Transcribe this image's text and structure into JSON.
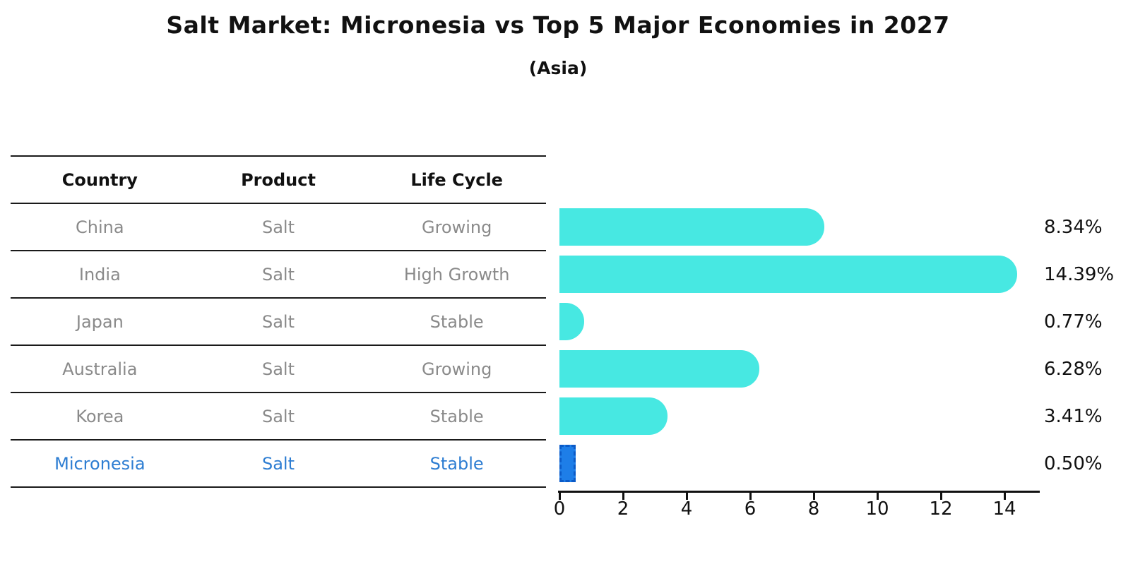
{
  "title": "Salt Market: Micronesia vs Top 5 Major Economies in 2027",
  "subtitle": "(Asia)",
  "colors": {
    "bar": "#47E8E2",
    "highlight_bar": "#1E7EE8",
    "highlight_bar_border": "#0B5BC8",
    "highlight_text": "#2D7DD2",
    "row_text": "#8A8A8A",
    "header_text": "#111111",
    "line": "#1A1A1A",
    "axis": "#111111"
  },
  "table": {
    "headers": [
      "Country",
      "Product",
      "Life Cycle"
    ],
    "rows": [
      {
        "country": "China",
        "product": "Salt",
        "life_cycle": "Growing",
        "highlight": false
      },
      {
        "country": "India",
        "product": "Salt",
        "life_cycle": "High Growth",
        "highlight": false
      },
      {
        "country": "Japan",
        "product": "Salt",
        "life_cycle": "Stable",
        "highlight": false
      },
      {
        "country": "Australia",
        "product": "Salt",
        "life_cycle": "Growing",
        "highlight": false
      },
      {
        "country": "Korea",
        "product": "Salt",
        "life_cycle": "Stable",
        "highlight": false
      },
      {
        "country": "Micronesia",
        "product": "Salt",
        "life_cycle": "Stable",
        "highlight": true
      }
    ]
  },
  "chart_data": {
    "type": "bar",
    "orientation": "horizontal",
    "title": "Salt Market: Micronesia vs Top 5 Major Economies in 2027",
    "subtitle": "(Asia)",
    "categories": [
      "China",
      "India",
      "Japan",
      "Australia",
      "Korea",
      "Micronesia"
    ],
    "values": [
      8.34,
      14.39,
      0.77,
      6.28,
      3.41,
      0.5
    ],
    "value_labels": [
      "8.34%",
      "14.39%",
      "0.77%",
      "6.28%",
      "3.41%",
      "0.50%"
    ],
    "highlight_index": 5,
    "xlabel": "",
    "ylabel": "",
    "xlim": [
      0,
      15.1
    ],
    "xticks": [
      0,
      2,
      4,
      6,
      8,
      10,
      12,
      14
    ],
    "grid": false,
    "legend": false
  }
}
